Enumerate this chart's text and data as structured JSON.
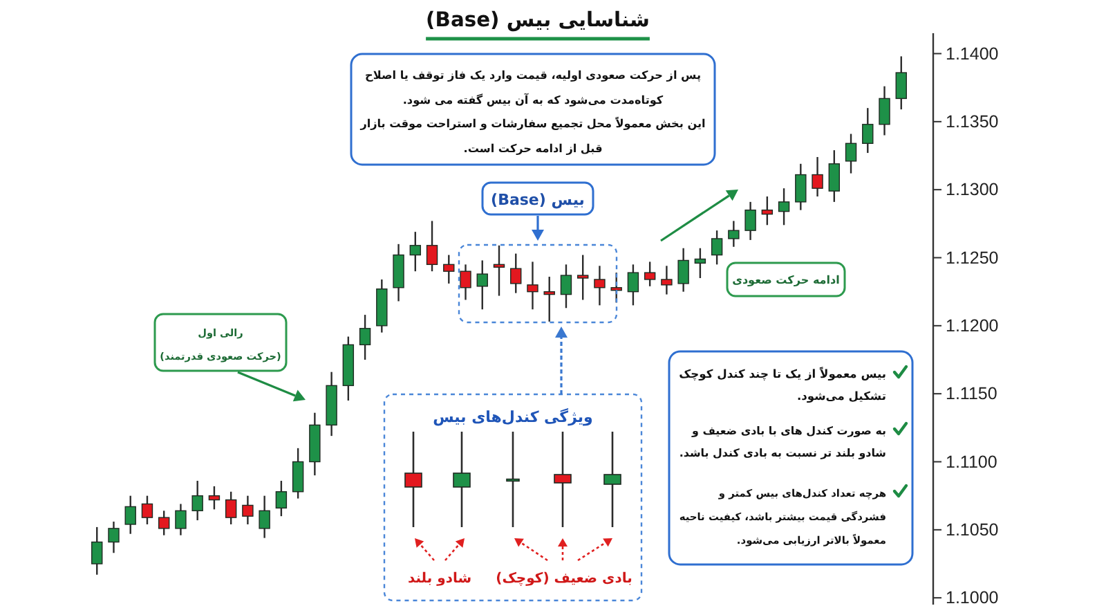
{
  "chart_data": {
    "type": "candlestick",
    "title": "شناسایی بیس (Base)",
    "categories": [
      null,
      null,
      null,
      null,
      null,
      null,
      null,
      null,
      null,
      null,
      null,
      null,
      null,
      null,
      null,
      null,
      null,
      null,
      null,
      null,
      null,
      null,
      null,
      null,
      null,
      null,
      null,
      null,
      null,
      null,
      null,
      null,
      null,
      null,
      null,
      null,
      null,
      null,
      null,
      null,
      null,
      null,
      null,
      null,
      null,
      null,
      null,
      null,
      null
    ],
    "ohlc": [
      [
        1.1025,
        1.1052,
        1.1017,
        1.1041
      ],
      [
        1.1041,
        1.1056,
        1.1033,
        1.1051
      ],
      [
        1.1054,
        1.1075,
        1.1047,
        1.1067
      ],
      [
        1.1069,
        1.1075,
        1.1054,
        1.1059
      ],
      [
        1.1059,
        1.1064,
        1.1046,
        1.1051
      ],
      [
        1.1051,
        1.1069,
        1.1046,
        1.1064
      ],
      [
        1.1064,
        1.1086,
        1.1057,
        1.1075
      ],
      [
        1.1075,
        1.1082,
        1.1065,
        1.1072
      ],
      [
        1.1072,
        1.1078,
        1.1054,
        1.1059
      ],
      [
        1.1068,
        1.1075,
        1.1054,
        1.106
      ],
      [
        1.1051,
        1.1075,
        1.1044,
        1.1064
      ],
      [
        1.1066,
        1.1086,
        1.106,
        1.1078
      ],
      [
        1.1078,
        1.111,
        1.1073,
        1.11
      ],
      [
        1.11,
        1.1136,
        1.109,
        1.1127
      ],
      [
        1.1127,
        1.1166,
        1.1119,
        1.1156
      ],
      [
        1.1156,
        1.1192,
        1.1145,
        1.1186
      ],
      [
        1.1186,
        1.1208,
        1.1175,
        1.1198
      ],
      [
        1.12,
        1.1234,
        1.1195,
        1.1227
      ],
      [
        1.1228,
        1.126,
        1.1218,
        1.1252
      ],
      [
        1.1252,
        1.1269,
        1.124,
        1.1259
      ],
      [
        1.1259,
        1.1277,
        1.124,
        1.1245
      ],
      [
        1.1245,
        1.1252,
        1.1231,
        1.124
      ],
      [
        1.124,
        1.1245,
        1.1219,
        1.1228
      ],
      [
        1.1229,
        1.1248,
        1.1212,
        1.1238
      ],
      [
        1.1245,
        1.1259,
        1.1222,
        1.1243
      ],
      [
        1.1242,
        1.1253,
        1.1224,
        1.1231
      ],
      [
        1.123,
        1.1247,
        1.1212,
        1.1225
      ],
      [
        1.1225,
        1.1236,
        1.1203,
        1.1223
      ],
      [
        1.1223,
        1.1245,
        1.1213,
        1.1237
      ],
      [
        1.1237,
        1.1252,
        1.1219,
        1.1235
      ],
      [
        1.1234,
        1.1244,
        1.1215,
        1.1228
      ],
      [
        1.1228,
        1.1239,
        1.1217,
        1.1226
      ],
      [
        1.1225,
        1.1245,
        1.1215,
        1.1239
      ],
      [
        1.1239,
        1.1247,
        1.1229,
        1.1234
      ],
      [
        1.1234,
        1.1244,
        1.1223,
        1.123
      ],
      [
        1.1231,
        1.1257,
        1.1225,
        1.1248
      ],
      [
        1.1246,
        1.1257,
        1.1235,
        1.1249
      ],
      [
        1.1252,
        1.127,
        1.1245,
        1.1264
      ],
      [
        1.1264,
        1.1277,
        1.1258,
        1.127
      ],
      [
        1.127,
        1.1291,
        1.1263,
        1.1285
      ],
      [
        1.1285,
        1.1295,
        1.1274,
        1.1282
      ],
      [
        1.1284,
        1.1301,
        1.1274,
        1.1291
      ],
      [
        1.1291,
        1.1319,
        1.1285,
        1.1311
      ],
      [
        1.1311,
        1.1324,
        1.1295,
        1.1301
      ],
      [
        1.1299,
        1.1329,
        1.1291,
        1.1319
      ],
      [
        1.1321,
        1.1341,
        1.1312,
        1.1334
      ],
      [
        1.1334,
        1.136,
        1.1327,
        1.1348
      ],
      [
        1.1348,
        1.1376,
        1.134,
        1.1367
      ],
      [
        1.1367,
        1.1398,
        1.1359,
        1.1386
      ]
    ],
    "colors": [
      "#1e9148",
      "#1e9148",
      "#1e9148",
      "#e3181f",
      "#e3181f",
      "#1e9148",
      "#1e9148",
      "#e3181f",
      "#e3181f",
      "#e3181f",
      "#1e9148",
      "#1e9148",
      "#1e9148",
      "#1e9148",
      "#1e9148",
      "#1e9148",
      "#1e9148",
      "#1e9148",
      "#1e9148",
      "#1e9148",
      "#e3181f",
      "#e3181f",
      "#e3181f",
      "#1e9148",
      "#e3181f",
      "#e3181f",
      "#e3181f",
      "#e3181f",
      "#1e9148",
      "#e3181f",
      "#e3181f",
      "#e3181f",
      "#1e9148",
      "#e3181f",
      "#e3181f",
      "#1e9148",
      "#1e9148",
      "#1e9148",
      "#1e9148",
      "#1e9148",
      "#e3181f",
      "#1e9148",
      "#1e9148",
      "#e3181f",
      "#1e9148",
      "#1e9148",
      "#1e9148",
      "#1e9148",
      "#1e9148"
    ],
    "ylim": [
      1.0995,
      1.1415
    ],
    "yticks": [
      {
        "value": 1.1,
        "label": "1.1000"
      },
      {
        "value": 1.105,
        "label": "1.1050"
      },
      {
        "value": 1.11,
        "label": "1.1100"
      },
      {
        "value": 1.115,
        "label": "1.1150"
      },
      {
        "value": 1.12,
        "label": "1.1200"
      },
      {
        "value": 1.125,
        "label": "1.1250"
      },
      {
        "value": 1.13,
        "label": "1.1300"
      },
      {
        "value": 1.135,
        "label": "1.1350"
      },
      {
        "value": 1.14,
        "label": "1.1400"
      }
    ],
    "annotations": [
      "پس از حرکت صعودی اولیه، قیمت وارد یک فاز توقف یا اصلاح\nکوتاه‌مدت می‌شود که به آن بیس گفته می شود.\nاین بخش معمولاً محل تجمیع سفارشات و استراحت موقت بازار\nقبل از ادامه حرکت است.",
      "بیس (Base)",
      "رالی اول\n(حرکت صعودی قدرتمند)",
      "ادامه حرکت صعودی",
      "ویژگی کندل‌های بیس",
      "شادو بلند",
      "بادی ضعیف (کوچک)",
      "بیس معمولاً از یک تا چند کندل کوچک\nتشکیل می‌شود.",
      "به صورت کندل های با بادی ضعیف و\nشادو بلند تر نسبت به بادی کندل باشد.",
      "هرچه تعداد کندل‌های بیس کمتر و\nفشردگی قیمت بیشتر باشد، کیفیت ناحیه\nمعمولاً بالاتر ارزیابی می‌شود."
    ]
  }
}
